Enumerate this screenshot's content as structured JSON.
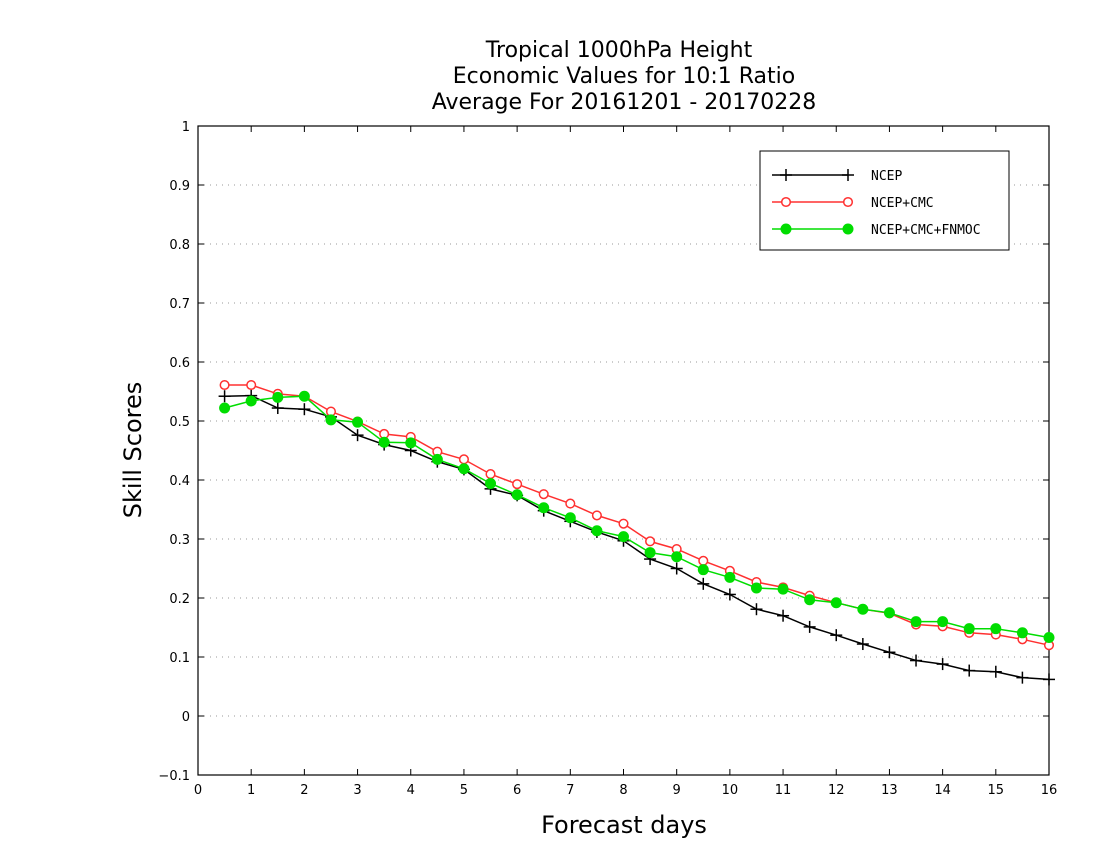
{
  "chart_data": {
    "type": "line",
    "title": [
      "Tropical 1000hPa Height",
      "Economic Values for 10:1 Ratio",
      "Average For 20161201 - 20170228"
    ],
    "xlabel": "Forecast days",
    "ylabel": "Skill Scores",
    "xlim": [
      0,
      16
    ],
    "ylim": [
      -0.1,
      1
    ],
    "xticks": [
      "0",
      "1",
      "2",
      "3",
      "4",
      "5",
      "6",
      "7",
      "8",
      "9",
      "10",
      "11",
      "12",
      "13",
      "14",
      "15",
      "16"
    ],
    "yticks": [
      "−0.1",
      "0",
      "0.1",
      "0.2",
      "0.3",
      "0.4",
      "0.5",
      "0.6",
      "0.7",
      "0.8",
      "0.9",
      "1"
    ],
    "grid": "dotted horizontal",
    "legend_position": "top-right",
    "x": [
      0.5,
      1,
      1.5,
      2,
      2.5,
      3,
      3.5,
      4,
      4.5,
      5,
      5.5,
      6,
      6.5,
      7,
      7.5,
      8,
      8.5,
      9,
      9.5,
      10,
      10.5,
      11,
      11.5,
      12,
      12.5,
      13,
      13.5,
      14,
      14.5,
      15,
      15.5,
      16
    ],
    "series": [
      {
        "name": "NCEP",
        "color": "#000000",
        "marker": "plus",
        "values": [
          0.542,
          0.543,
          0.522,
          0.52,
          0.507,
          0.476,
          0.46,
          0.45,
          0.431,
          0.418,
          0.385,
          0.374,
          0.348,
          0.33,
          0.312,
          0.297,
          0.266,
          0.25,
          0.224,
          0.206,
          0.181,
          0.17,
          0.151,
          0.137,
          0.122,
          0.108,
          0.094,
          0.088,
          0.077,
          0.075,
          0.065,
          0.062
        ]
      },
      {
        "name": "NCEP+CMC",
        "color": "#ff3030",
        "marker": "open-circle",
        "values": [
          0.561,
          0.561,
          0.546,
          0.542,
          0.516,
          0.499,
          0.478,
          0.473,
          0.448,
          0.435,
          0.41,
          0.393,
          0.376,
          0.36,
          0.34,
          0.326,
          0.296,
          0.283,
          0.263,
          0.246,
          0.227,
          0.218,
          0.204,
          0.192,
          0.181,
          0.174,
          0.155,
          0.152,
          0.141,
          0.138,
          0.13,
          0.12
        ]
      },
      {
        "name": "NCEP+CMC+FNMOC",
        "color": "#00dd00",
        "marker": "filled-circle",
        "values": [
          0.522,
          0.534,
          0.54,
          0.542,
          0.502,
          0.498,
          0.464,
          0.463,
          0.435,
          0.419,
          0.394,
          0.375,
          0.353,
          0.336,
          0.314,
          0.304,
          0.277,
          0.27,
          0.248,
          0.235,
          0.217,
          0.215,
          0.197,
          0.192,
          0.181,
          0.175,
          0.16,
          0.16,
          0.148,
          0.148,
          0.141,
          0.133
        ]
      }
    ]
  }
}
